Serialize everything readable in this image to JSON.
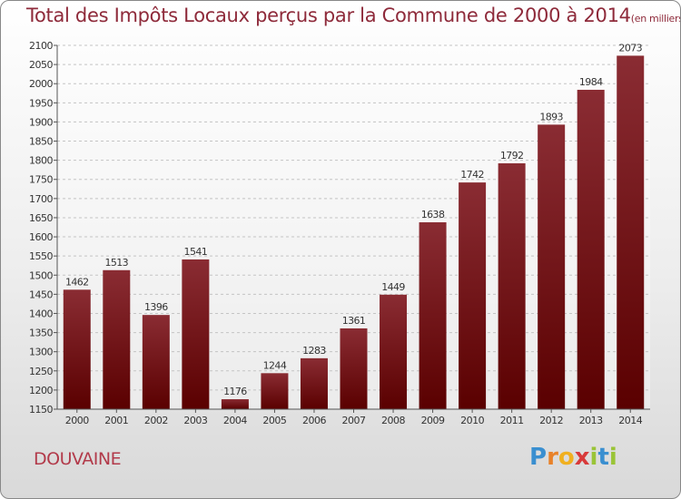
{
  "commune": "DOUVAINE",
  "brand": {
    "letters": [
      "P",
      "r",
      "o",
      "x",
      "i",
      "t",
      "i"
    ],
    "colors": [
      "#3a8fd0",
      "#e8822a",
      "#f0b020",
      "#d83a3a",
      "#9ac437",
      "#3a8fd0",
      "#9ac437"
    ]
  },
  "chart_data": {
    "type": "bar",
    "title": "Total des Impôts Locaux perçus par la Commune de 2000 à 2014",
    "unit": "(en milliers d'€)",
    "categories": [
      "2000",
      "2001",
      "2002",
      "2003",
      "2004",
      "2005",
      "2006",
      "2007",
      "2008",
      "2009",
      "2010",
      "2011",
      "2012",
      "2013",
      "2014"
    ],
    "values": [
      1462,
      1513,
      1396,
      1541,
      1176,
      1244,
      1283,
      1361,
      1449,
      1638,
      1742,
      1792,
      1893,
      1984,
      2073
    ],
    "ylim": [
      1150,
      2100
    ],
    "yticks": [
      1150,
      1200,
      1250,
      1300,
      1350,
      1400,
      1450,
      1500,
      1550,
      1600,
      1650,
      1700,
      1750,
      1800,
      1850,
      1900,
      1950,
      2000,
      2050,
      2100
    ],
    "xlabel": "",
    "ylabel": "",
    "grid": true,
    "bar_color_top": "#8a2c33",
    "bar_color_bottom": "#5a0000"
  }
}
